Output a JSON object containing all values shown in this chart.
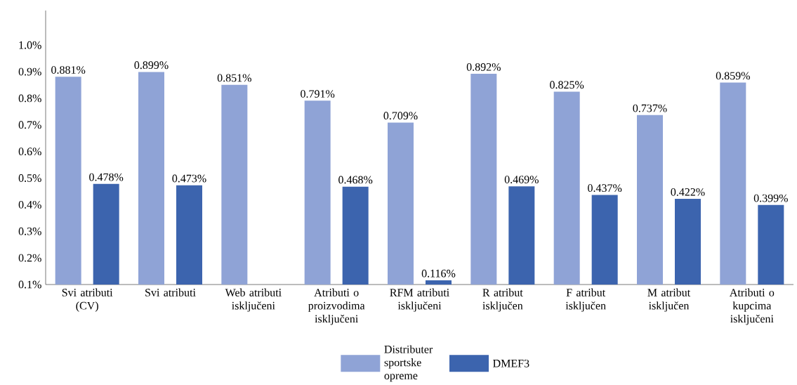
{
  "chart_data": {
    "type": "bar",
    "categories": [
      "Svi atributi (CV)",
      "Svi atributi",
      "Web atributi isključeni",
      "Atributi o proizvodima isključeni",
      "RFM atributi isključeni",
      "R atribut isključen",
      "F atribut isključen",
      "M atribut isključen",
      "Atributi o kupcima isključeni"
    ],
    "series": [
      {
        "name": "Distributer sportske opreme",
        "color": "#8fa3d6",
        "values": [
          0.881,
          0.899,
          0.851,
          0.791,
          0.709,
          0.892,
          0.825,
          0.737,
          0.859
        ],
        "value_labels": [
          "0.881%",
          "0.899%",
          "0.851%",
          "0.791%",
          "0.709%",
          "0.892%",
          "0.825%",
          "0.737%",
          "0.859%"
        ]
      },
      {
        "name": "DMEF3",
        "color": "#3c64ae",
        "values": [
          0.478,
          0.473,
          null,
          0.468,
          0.116,
          0.469,
          0.437,
          0.422,
          0.399
        ],
        "value_labels": [
          "0.478%",
          "0.473%",
          null,
          "0.468%",
          "0.116%",
          "0.469%",
          "0.437%",
          "0.422%",
          "0.399%"
        ]
      }
    ],
    "ylim": [
      0.1,
      1.13
    ],
    "yticks": [
      {
        "value": 0.1,
        "label": "0.1%"
      },
      {
        "value": 0.2,
        "label": "0.2%"
      },
      {
        "value": 0.3,
        "label": "0.3%"
      },
      {
        "value": 0.4,
        "label": "0.4%"
      },
      {
        "value": 0.5,
        "label": "0.5%"
      },
      {
        "value": 0.6,
        "label": "0.6%"
      },
      {
        "value": 0.7,
        "label": "0.7%"
      },
      {
        "value": 0.8,
        "label": "0.8%"
      },
      {
        "value": 0.9,
        "label": "0.9%"
      },
      {
        "value": 1.0,
        "label": "1.0%"
      }
    ],
    "legend": "bottom"
  }
}
